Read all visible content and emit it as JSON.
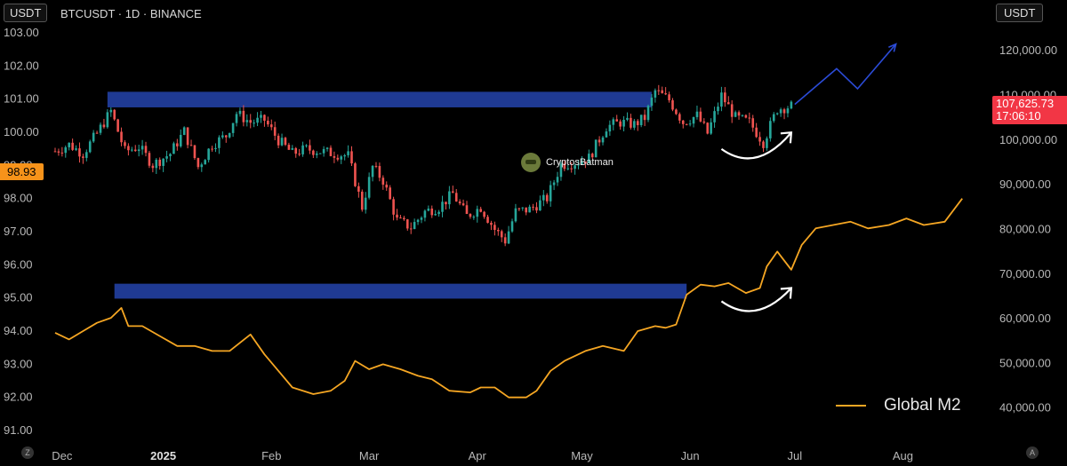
{
  "header": {
    "currency_left": "USDT",
    "symbol": "BTCUSDT · 1D · BINANCE",
    "currency_right": "USDT"
  },
  "badges": {
    "left_value": "98.93",
    "right_price": "107,625.73",
    "right_time": "17:06:10"
  },
  "watermark": {
    "text": "CryptosBatman"
  },
  "legend": {
    "label": "Global M2",
    "color": "#f5a623"
  },
  "corners": {
    "left": "Z",
    "right": "A"
  },
  "chart_data": {
    "type": "line",
    "x_axis": {
      "tick_labels": [
        "Dec",
        "2025",
        "Feb",
        "Mar",
        "Apr",
        "May",
        "Jun",
        "Jul",
        "Aug"
      ],
      "start": "2024-12-01",
      "end": "2025-08-20"
    },
    "left_axis": {
      "tick_labels": [
        "103.00",
        "102.00",
        "101.00",
        "100.00",
        "99.00",
        "98.00",
        "97.00",
        "96.00",
        "95.00",
        "94.00",
        "93.00",
        "92.00",
        "91.00"
      ],
      "range": [
        90.6,
        103.4
      ]
    },
    "right_axis": {
      "tick_labels": [
        "120,000.00",
        "110,000.00",
        "100,000.00",
        "90,000.00",
        "80,000.00",
        "70,000.00",
        "60,000.00",
        "50,000.00",
        "40,000.00"
      ],
      "range": [
        32000,
        127000
      ]
    },
    "zones": [
      {
        "axis": "left",
        "from_date": "2024-12-16",
        "to_date": "2025-05-21",
        "low": 100.75,
        "high": 101.22,
        "color": "#1f3a93"
      },
      {
        "axis": "left",
        "from_date": "2024-12-18",
        "to_date": "2025-05-31",
        "low": 94.98,
        "high": 95.43,
        "color": "#1f3a93"
      }
    ],
    "series": [
      {
        "name": "BTCUSDT",
        "kind": "candlestick",
        "axis": "right",
        "up_color": "#26a69a",
        "down_color": "#ef5350",
        "closes": [
          [
            "2024-12-01",
            97500
          ],
          [
            "2024-12-05",
            99000
          ],
          [
            "2024-12-09",
            97000
          ],
          [
            "2024-12-13",
            101500
          ],
          [
            "2024-12-17",
            106500
          ],
          [
            "2024-12-21",
            97500
          ],
          [
            "2024-12-25",
            98500
          ],
          [
            "2024-12-29",
            94500
          ],
          [
            "2025-01-03",
            97000
          ],
          [
            "2025-01-07",
            102000
          ],
          [
            "2025-01-11",
            94000
          ],
          [
            "2025-01-15",
            99000
          ],
          [
            "2025-01-19",
            101000
          ],
          [
            "2025-01-22",
            106000
          ],
          [
            "2025-01-26",
            104000
          ],
          [
            "2025-01-30",
            104500
          ],
          [
            "2025-02-03",
            100000
          ],
          [
            "2025-02-07",
            97000
          ],
          [
            "2025-02-11",
            98000
          ],
          [
            "2025-02-15",
            97500
          ],
          [
            "2025-02-19",
            97000
          ],
          [
            "2025-02-23",
            96500
          ],
          [
            "2025-02-27",
            85000
          ],
          [
            "2025-03-02",
            94000
          ],
          [
            "2025-03-05",
            91000
          ],
          [
            "2025-03-09",
            82000
          ],
          [
            "2025-03-13",
            80500
          ],
          [
            "2025-03-17",
            84000
          ],
          [
            "2025-03-21",
            85000
          ],
          [
            "2025-03-25",
            88000
          ],
          [
            "2025-03-29",
            83000
          ],
          [
            "2025-04-02",
            85000
          ],
          [
            "2025-04-06",
            80000
          ],
          [
            "2025-04-09",
            77500
          ],
          [
            "2025-04-12",
            84000
          ],
          [
            "2025-04-16",
            84500
          ],
          [
            "2025-04-21",
            87000
          ],
          [
            "2025-04-25",
            94500
          ],
          [
            "2025-04-29",
            95000
          ],
          [
            "2025-05-03",
            96000
          ],
          [
            "2025-05-08",
            103000
          ],
          [
            "2025-05-12",
            104000
          ],
          [
            "2025-05-16",
            103500
          ],
          [
            "2025-05-19",
            105000
          ],
          [
            "2025-05-22",
            111000
          ],
          [
            "2025-05-26",
            109000
          ],
          [
            "2025-05-30",
            104000
          ],
          [
            "2025-06-03",
            105500
          ],
          [
            "2025-06-06",
            101500
          ],
          [
            "2025-06-10",
            110000
          ],
          [
            "2025-06-14",
            105000
          ],
          [
            "2025-06-18",
            104000
          ],
          [
            "2025-06-22",
            99500
          ],
          [
            "2025-06-26",
            107000
          ],
          [
            "2025-06-30",
            107625.73
          ]
        ]
      },
      {
        "name": "Global M2",
        "kind": "line",
        "axis": "left",
        "color": "#f5a623",
        "points": [
          [
            "2024-12-01",
            93.95
          ],
          [
            "2024-12-05",
            93.75
          ],
          [
            "2024-12-09",
            94.0
          ],
          [
            "2024-12-13",
            94.25
          ],
          [
            "2024-12-17",
            94.4
          ],
          [
            "2024-12-20",
            94.7
          ],
          [
            "2024-12-22",
            94.15
          ],
          [
            "2024-12-26",
            94.15
          ],
          [
            "2024-12-31",
            93.85
          ],
          [
            "2025-01-05",
            93.55
          ],
          [
            "2025-01-10",
            93.55
          ],
          [
            "2025-01-15",
            93.4
          ],
          [
            "2025-01-20",
            93.4
          ],
          [
            "2025-01-26",
            93.9
          ],
          [
            "2025-01-30",
            93.3
          ],
          [
            "2025-02-03",
            92.8
          ],
          [
            "2025-02-07",
            92.3
          ],
          [
            "2025-02-13",
            92.1
          ],
          [
            "2025-02-18",
            92.2
          ],
          [
            "2025-02-22",
            92.5
          ],
          [
            "2025-02-25",
            93.1
          ],
          [
            "2025-03-01",
            92.85
          ],
          [
            "2025-03-05",
            93.0
          ],
          [
            "2025-03-10",
            92.85
          ],
          [
            "2025-03-15",
            92.65
          ],
          [
            "2025-03-19",
            92.55
          ],
          [
            "2025-03-24",
            92.2
          ],
          [
            "2025-03-30",
            92.15
          ],
          [
            "2025-04-02",
            92.3
          ],
          [
            "2025-04-06",
            92.3
          ],
          [
            "2025-04-10",
            92.0
          ],
          [
            "2025-04-15",
            92.0
          ],
          [
            "2025-04-18",
            92.2
          ],
          [
            "2025-04-22",
            92.8
          ],
          [
            "2025-04-26",
            93.1
          ],
          [
            "2025-05-02",
            93.4
          ],
          [
            "2025-05-07",
            93.55
          ],
          [
            "2025-05-13",
            93.4
          ],
          [
            "2025-05-17",
            94.0
          ],
          [
            "2025-05-22",
            94.15
          ],
          [
            "2025-05-25",
            94.1
          ],
          [
            "2025-05-28",
            94.2
          ],
          [
            "2025-05-31",
            95.1
          ],
          [
            "2025-06-04",
            95.4
          ],
          [
            "2025-06-08",
            95.35
          ],
          [
            "2025-06-12",
            95.45
          ],
          [
            "2025-06-17",
            95.15
          ],
          [
            "2025-06-21",
            95.3
          ],
          [
            "2025-06-23",
            95.95
          ],
          [
            "2025-06-26",
            96.4
          ],
          [
            "2025-06-30",
            95.85
          ],
          [
            "2025-07-03",
            96.6
          ],
          [
            "2025-07-07",
            97.1
          ],
          [
            "2025-07-12",
            97.2
          ],
          [
            "2025-07-17",
            97.3
          ],
          [
            "2025-07-22",
            97.1
          ],
          [
            "2025-07-28",
            97.2
          ],
          [
            "2025-08-02",
            97.4
          ],
          [
            "2025-08-07",
            97.2
          ],
          [
            "2025-08-13",
            97.3
          ],
          [
            "2025-08-18",
            98.0
          ]
        ]
      }
    ],
    "annotations": [
      {
        "kind": "projection-arrow",
        "color": "#2b4bd6",
        "points": [
          [
            "2025-07-01",
            108000
          ],
          [
            "2025-07-13",
            116000
          ],
          [
            "2025-07-19",
            111500
          ],
          [
            "2025-07-30",
            121500
          ]
        ]
      },
      {
        "kind": "curved-arrow",
        "color": "#ffffff",
        "axis": "right",
        "from": [
          "2025-06-10",
          98000
        ],
        "to": [
          "2025-06-30",
          101700
        ]
      },
      {
        "kind": "curved-arrow",
        "color": "#ffffff",
        "axis": "left",
        "from": [
          "2025-06-10",
          94.9
        ],
        "to": [
          "2025-06-30",
          95.3
        ]
      }
    ]
  }
}
